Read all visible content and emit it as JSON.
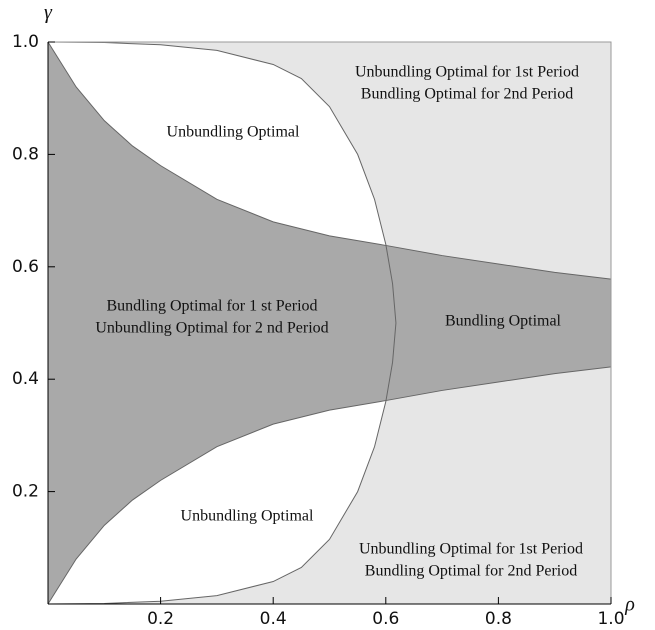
{
  "chart_data": {
    "type": "region",
    "x_label": "ρ",
    "y_label": "γ",
    "xlim": [
      0,
      1
    ],
    "ylim": [
      0,
      1
    ],
    "xticks": [
      0.2,
      0.4,
      0.6,
      0.8,
      {
        "value": 1,
        "label": "1.0"
      }
    ],
    "yticks": [
      0.2,
      0.4,
      0.6,
      0.8,
      {
        "value": 1,
        "label": "1.0"
      }
    ],
    "colors": {
      "background": "#e6e6e6",
      "inner": "#ffffff",
      "band": "#a9a9a9",
      "line": "#666666"
    },
    "series": [
      {
        "x": [
          0,
          0.05,
          0.1,
          0.15,
          0.2,
          0.3,
          0.4,
          0.5,
          0.6,
          0.7,
          0.8,
          0.9,
          1
        ],
        "values": [
          1,
          0.92,
          0.86,
          0.815,
          0.78,
          0.72,
          0.68,
          0.655,
          0.638,
          0.62,
          0.605,
          0.59,
          0.578
        ]
      },
      {
        "x": [
          0,
          0.05,
          0.1,
          0.15,
          0.2,
          0.3,
          0.4,
          0.5,
          0.6,
          0.7,
          0.8,
          0.9,
          1
        ],
        "values": [
          0,
          0.08,
          0.14,
          0.185,
          0.22,
          0.28,
          0.32,
          0.345,
          0.362,
          0.38,
          0.395,
          0.41,
          0.422
        ]
      },
      {
        "x": [
          0,
          0.1,
          0.2,
          0.3,
          0.4,
          0.45,
          0.5,
          0.55,
          0.58,
          0.6,
          0.612,
          0.618,
          0.612,
          0.6,
          0.58,
          0.55,
          0.5,
          0.45,
          0.4,
          0.3,
          0.2,
          0.1,
          0
        ],
        "values": [
          1,
          0.999,
          0.995,
          0.985,
          0.96,
          0.935,
          0.885,
          0.8,
          0.72,
          0.64,
          0.57,
          0.5,
          0.43,
          0.36,
          0.28,
          0.2,
          0.115,
          0.065,
          0.04,
          0.015,
          0.005,
          0.001,
          0
        ]
      }
    ],
    "annotations": [
      "Unbundling Optimal for 1st Period",
      "Bundling Optimal for 2nd Period",
      "Unbundling Optimal",
      "Bundling Optimal for 1 st Period",
      "Unbundling Optimal for 2 nd Period",
      "Bundling Optimal",
      "Unbundling Optimal",
      "Unbundling Optimal for 1st Period",
      "Bundling Optimal for 2nd Period"
    ]
  }
}
